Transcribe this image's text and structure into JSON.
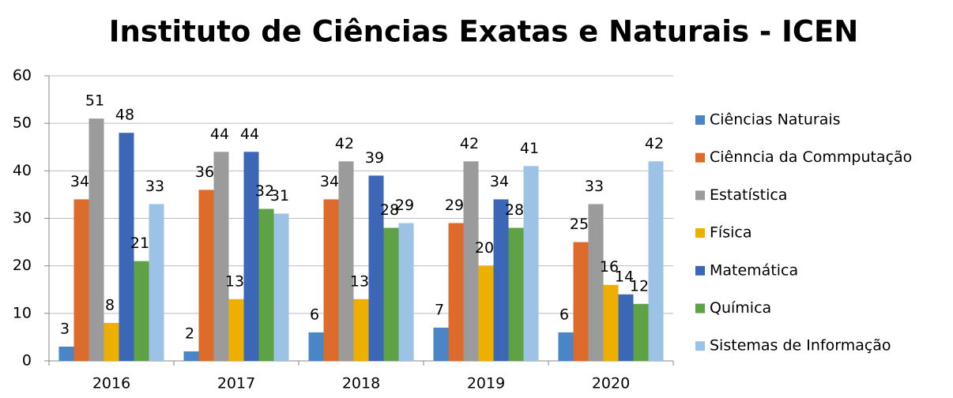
{
  "chart_data": {
    "type": "bar",
    "title": "Instituto de Ciências Exatas e Naturais - ICEN",
    "categories": [
      "2016",
      "2017",
      "2018",
      "2019",
      "2020"
    ],
    "series": [
      {
        "name": "Ciências Naturais",
        "color": "#4a86c6",
        "values": [
          3,
          2,
          6,
          7,
          6
        ]
      },
      {
        "name": "Ciênncia da Commputação",
        "color": "#dc6b2c",
        "values": [
          34,
          36,
          34,
          29,
          25
        ]
      },
      {
        "name": "Estatística",
        "color": "#9b9b9b",
        "values": [
          51,
          44,
          42,
          42,
          33
        ]
      },
      {
        "name": "Física",
        "color": "#eeb000",
        "values": [
          8,
          13,
          13,
          20,
          16
        ]
      },
      {
        "name": "Matemática",
        "color": "#3b67b6",
        "values": [
          48,
          44,
          39,
          34,
          14
        ]
      },
      {
        "name": "Química",
        "color": "#5fa246",
        "values": [
          21,
          32,
          28,
          28,
          12
        ]
      },
      {
        "name": "Sistemas de Informação",
        "color": "#9cc2e6",
        "values": [
          33,
          31,
          29,
          41,
          42
        ]
      }
    ],
    "ylim": [
      0,
      60
    ],
    "yticks": [
      0,
      10,
      20,
      30,
      40,
      50,
      60
    ],
    "grid": true,
    "legend": "right"
  }
}
